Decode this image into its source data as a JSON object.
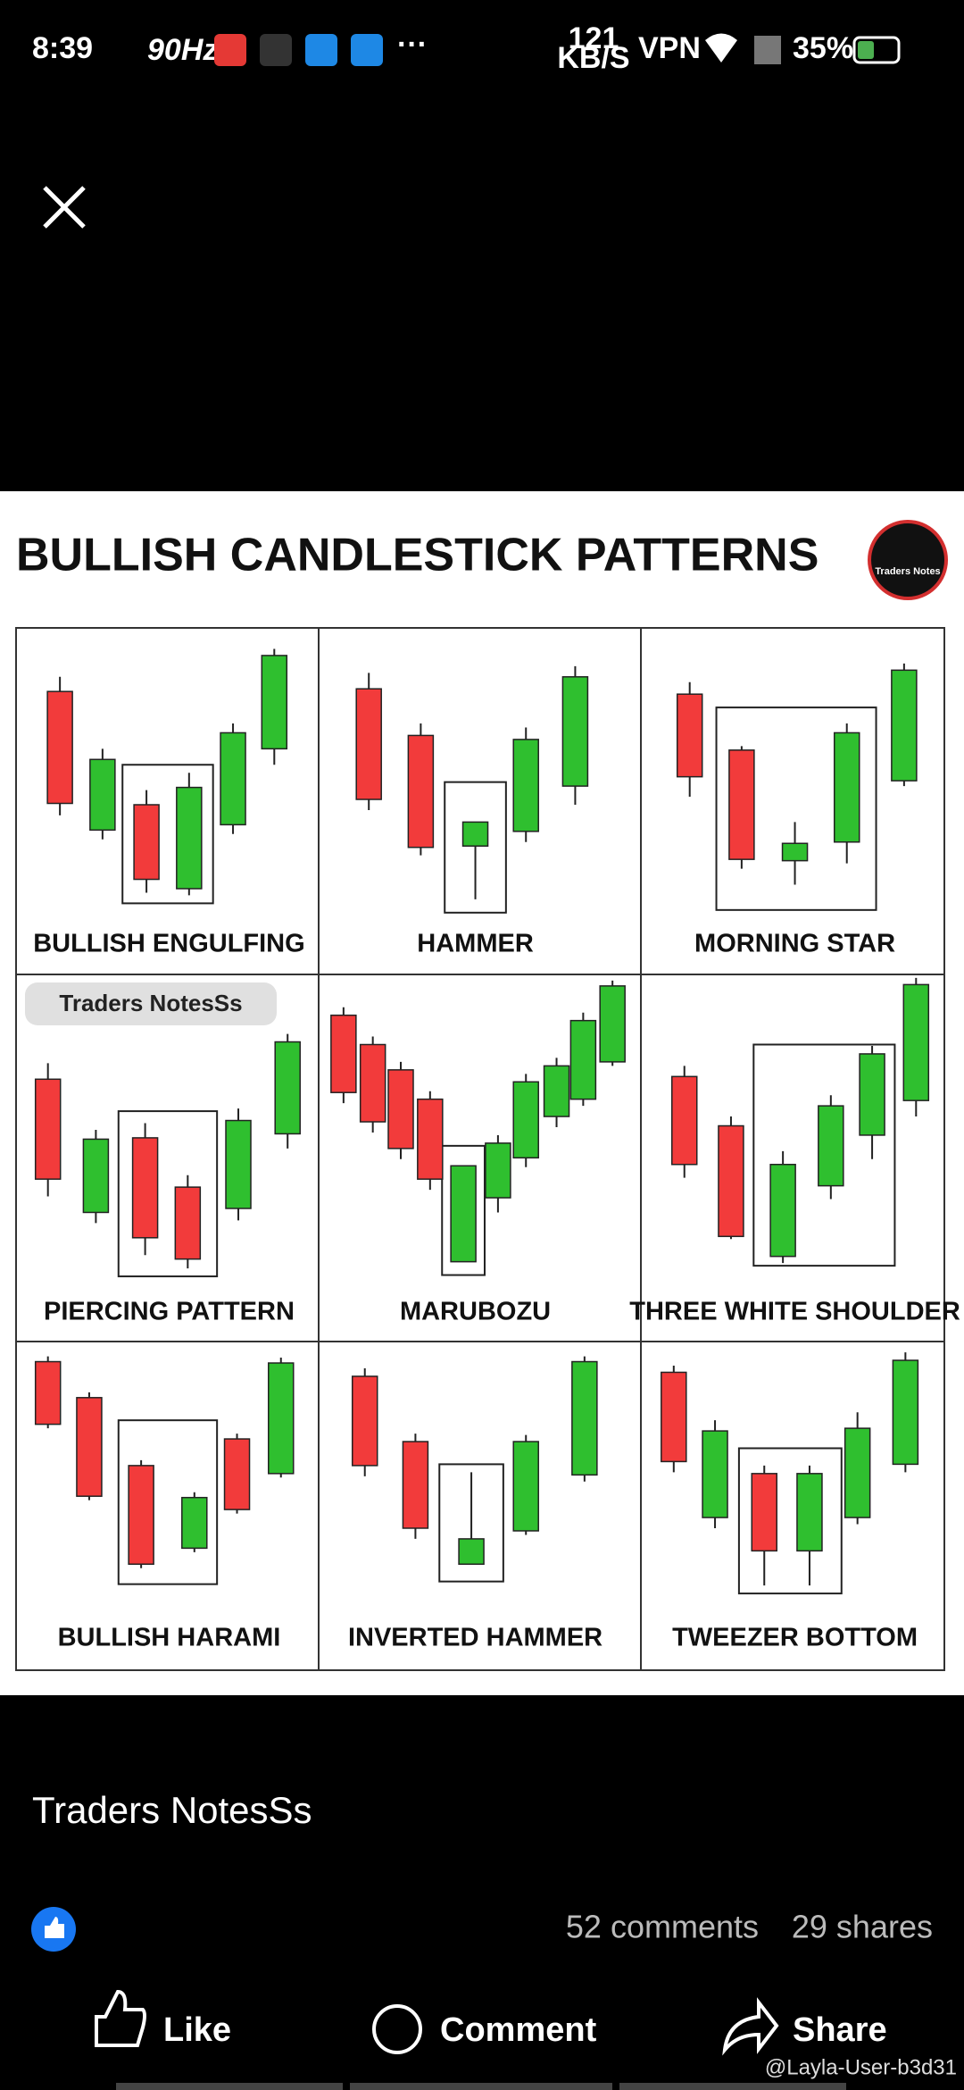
{
  "status_bar": {
    "time": "8:39",
    "refresh_rate": "90Hz",
    "speed": "121",
    "speed_unit": "KB/S",
    "vpn": "VPN",
    "battery": "35%"
  },
  "image": {
    "title": "BULLISH CANDLESTICK PATTERNS",
    "logo": "Traders Notes",
    "watermark": "Traders NotesSs",
    "patterns": [
      "BULLISH ENGULFING",
      "HAMMER",
      "MORNING STAR",
      "PIERCING PATTERN",
      "MARUBOZU",
      "THREE WHITE SHOULDER",
      "BULLISH HARAMI",
      "INVERTED HAMMER",
      "TWEEZER BOTTOM"
    ]
  },
  "post": {
    "author": "Traders NotesSs",
    "comments": "52 comments",
    "shares": "29 shares"
  },
  "actions": [
    "Like",
    "Comment",
    "Share"
  ],
  "user_watermark": "@Layla-User-b3d31"
}
